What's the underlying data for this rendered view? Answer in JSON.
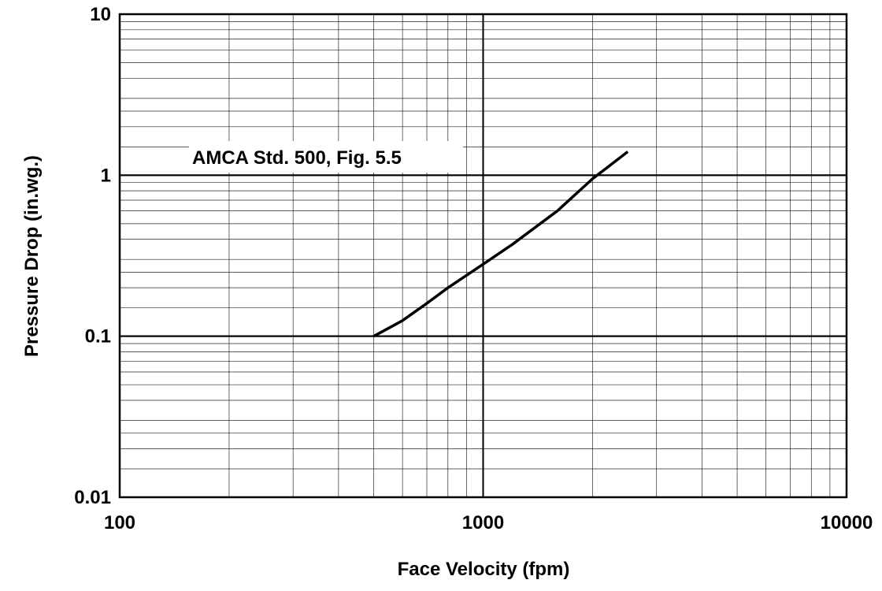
{
  "chart_data": {
    "type": "line",
    "title": "",
    "xlabel": "Face Velocity (fpm)",
    "ylabel": "Pressure Drop (in.wg.)",
    "xscale": "log",
    "yscale": "log",
    "xlim": [
      100,
      10000
    ],
    "ylim": [
      0.01,
      10
    ],
    "grid": true,
    "x_tick_labels": [
      "100",
      "1000",
      "10000"
    ],
    "y_tick_labels": [
      "0.01",
      "0.1",
      "1",
      "10"
    ],
    "annotation": "AMCA Std. 500, Fig. 5.5",
    "series": [
      {
        "x": [
          500,
          600,
          700,
          800,
          1000,
          1200,
          1600,
          2000,
          2500
        ],
        "y": [
          0.1,
          0.125,
          0.16,
          0.2,
          0.28,
          0.37,
          0.6,
          0.95,
          1.4
        ]
      }
    ],
    "colors": {
      "line": "#000000",
      "grid": "#000000"
    }
  }
}
